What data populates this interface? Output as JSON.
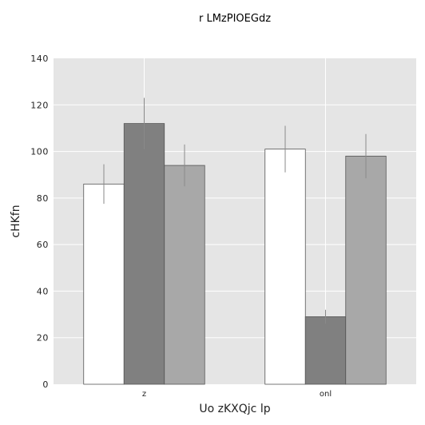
{
  "chart_data": {
    "type": "bar",
    "title": "r LMzPIOEGdz",
    "xlabel": "Uo zKXQjc  lp",
    "ylabel": "cHKfn",
    "ylim": [
      0,
      140
    ],
    "yticks": [
      0,
      20,
      40,
      60,
      80,
      100,
      120,
      140
    ],
    "categories": [
      "z",
      "onl"
    ],
    "grid": true,
    "legend": "none",
    "series": [
      {
        "color": "#ffffff",
        "values": [
          86,
          101
        ],
        "errors": [
          8.5,
          10
        ]
      },
      {
        "color": "#808080",
        "values": [
          112,
          29
        ],
        "errors": [
          11,
          3
        ]
      },
      {
        "color": "#a8a8a8",
        "values": [
          94,
          98
        ],
        "errors": [
          9,
          9.5
        ]
      }
    ],
    "colors": {
      "plot_background": "#e5e5e5",
      "grid": "#ffffff",
      "error_bar": "#8a8a8a",
      "bar_edge": "#555555"
    }
  }
}
